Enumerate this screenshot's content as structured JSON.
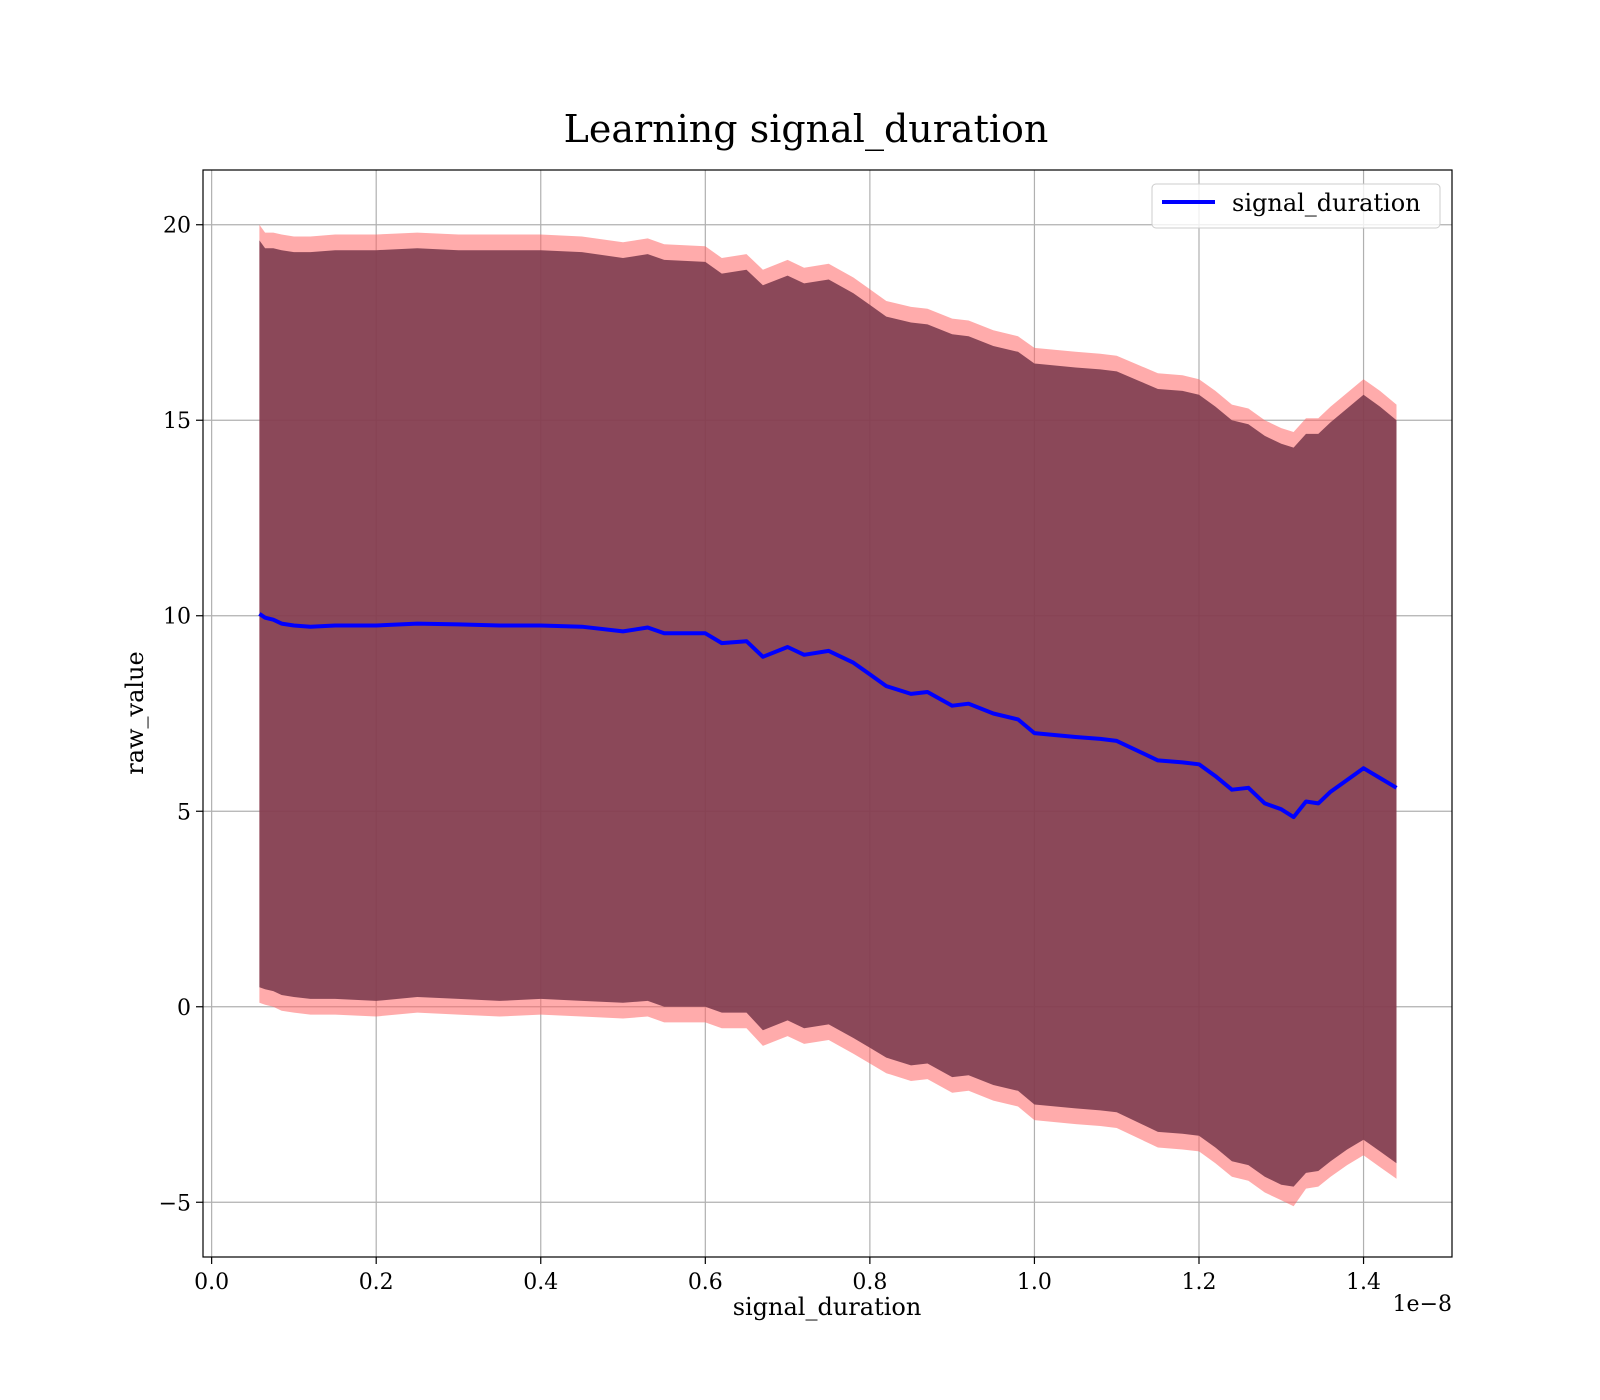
{
  "chart_data": {
    "type": "line",
    "title": "Learning signal_duration",
    "xlabel": "signal_duration",
    "ylabel": "raw_value",
    "x_offset_label": "1e−8",
    "xlim": [
      -0.0105,
      1.5075
    ],
    "ylim": [
      -6.4,
      21.4
    ],
    "grid": true,
    "legend_position": "top-right",
    "x_ticks": [
      0.0,
      0.2,
      0.4,
      0.6,
      0.8,
      1.0,
      1.2,
      1.4
    ],
    "x_tick_labels": [
      "0.0",
      "0.2",
      "0.4",
      "0.6",
      "0.8",
      "1.0",
      "1.2",
      "1.4"
    ],
    "y_ticks": [
      -5,
      0,
      5,
      10,
      15,
      20
    ],
    "y_tick_labels": [
      "−5",
      "0",
      "5",
      "10",
      "15",
      "20"
    ],
    "series": [
      {
        "name": "signal_duration",
        "color": "#0000ff",
        "x": [
          0.058,
          0.065,
          0.075,
          0.085,
          0.1,
          0.12,
          0.15,
          0.2,
          0.25,
          0.3,
          0.35,
          0.4,
          0.45,
          0.5,
          0.53,
          0.55,
          0.6,
          0.62,
          0.65,
          0.67,
          0.7,
          0.72,
          0.75,
          0.78,
          0.8,
          0.82,
          0.85,
          0.87,
          0.9,
          0.92,
          0.95,
          0.98,
          1.0,
          1.05,
          1.08,
          1.1,
          1.15,
          1.18,
          1.2,
          1.22,
          1.24,
          1.26,
          1.28,
          1.3,
          1.315,
          1.33,
          1.345,
          1.36,
          1.38,
          1.4,
          1.42,
          1.44
        ],
        "y": [
          10.05,
          9.95,
          9.9,
          9.8,
          9.75,
          9.72,
          9.75,
          9.75,
          9.8,
          9.78,
          9.75,
          9.75,
          9.72,
          9.6,
          9.7,
          9.55,
          9.55,
          9.3,
          9.35,
          8.95,
          9.2,
          9.0,
          9.1,
          8.8,
          8.5,
          8.2,
          8.0,
          8.05,
          7.7,
          7.75,
          7.5,
          7.35,
          7.0,
          6.9,
          6.85,
          6.8,
          6.3,
          6.25,
          6.2,
          5.9,
          5.55,
          5.6,
          5.2,
          5.05,
          4.85,
          5.25,
          5.2,
          5.5,
          5.8,
          6.1,
          5.85,
          5.6
        ]
      }
    ],
    "band": {
      "color": "#7b3a4d",
      "upper": [
        19.6,
        19.4,
        19.4,
        19.35,
        19.3,
        19.3,
        19.35,
        19.35,
        19.4,
        19.35,
        19.35,
        19.35,
        19.3,
        19.15,
        19.25,
        19.1,
        19.05,
        18.75,
        18.85,
        18.45,
        18.7,
        18.5,
        18.6,
        18.25,
        17.95,
        17.65,
        17.5,
        17.45,
        17.2,
        17.15,
        16.9,
        16.75,
        16.45,
        16.35,
        16.3,
        16.25,
        15.8,
        15.75,
        15.65,
        15.35,
        15.0,
        14.9,
        14.6,
        14.4,
        14.3,
        14.65,
        14.65,
        14.95,
        15.3,
        15.65,
        15.35,
        15.0
      ],
      "lower": [
        0.5,
        0.45,
        0.4,
        0.3,
        0.25,
        0.2,
        0.2,
        0.15,
        0.25,
        0.2,
        0.15,
        0.2,
        0.15,
        0.1,
        0.15,
        0.0,
        0.0,
        -0.15,
        -0.15,
        -0.6,
        -0.35,
        -0.55,
        -0.45,
        -0.8,
        -1.05,
        -1.3,
        -1.5,
        -1.45,
        -1.8,
        -1.75,
        -2.0,
        -2.15,
        -2.5,
        -2.6,
        -2.65,
        -2.7,
        -3.2,
        -3.25,
        -3.3,
        -3.6,
        -3.95,
        -4.05,
        -4.35,
        -4.55,
        -4.6,
        -4.25,
        -4.2,
        -3.95,
        -3.65,
        -3.4,
        -3.7,
        -4.0
      ]
    },
    "outer_band": {
      "color": "#ff6666",
      "upper": [
        20.0,
        19.8,
        19.8,
        19.75,
        19.7,
        19.7,
        19.75,
        19.75,
        19.8,
        19.75,
        19.75,
        19.75,
        19.7,
        19.55,
        19.65,
        19.5,
        19.45,
        19.15,
        19.25,
        18.85,
        19.1,
        18.9,
        19.0,
        18.65,
        18.35,
        18.05,
        17.9,
        17.85,
        17.6,
        17.55,
        17.3,
        17.15,
        16.85,
        16.75,
        16.7,
        16.65,
        16.2,
        16.15,
        16.05,
        15.75,
        15.4,
        15.3,
        15.0,
        14.8,
        14.7,
        15.05,
        15.05,
        15.35,
        15.7,
        16.05,
        15.75,
        15.4
      ],
      "lower": [
        0.1,
        0.05,
        0.0,
        -0.1,
        -0.15,
        -0.2,
        -0.2,
        -0.25,
        -0.15,
        -0.2,
        -0.25,
        -0.2,
        -0.25,
        -0.3,
        -0.25,
        -0.4,
        -0.4,
        -0.55,
        -0.55,
        -1.0,
        -0.75,
        -0.95,
        -0.85,
        -1.2,
        -1.45,
        -1.7,
        -1.9,
        -1.85,
        -2.2,
        -2.15,
        -2.4,
        -2.55,
        -2.9,
        -3.0,
        -3.05,
        -3.1,
        -3.6,
        -3.65,
        -3.7,
        -4.0,
        -4.35,
        -4.45,
        -4.75,
        -4.95,
        -5.1,
        -4.65,
        -4.6,
        -4.35,
        -4.05,
        -3.8,
        -4.1,
        -4.4
      ]
    }
  }
}
